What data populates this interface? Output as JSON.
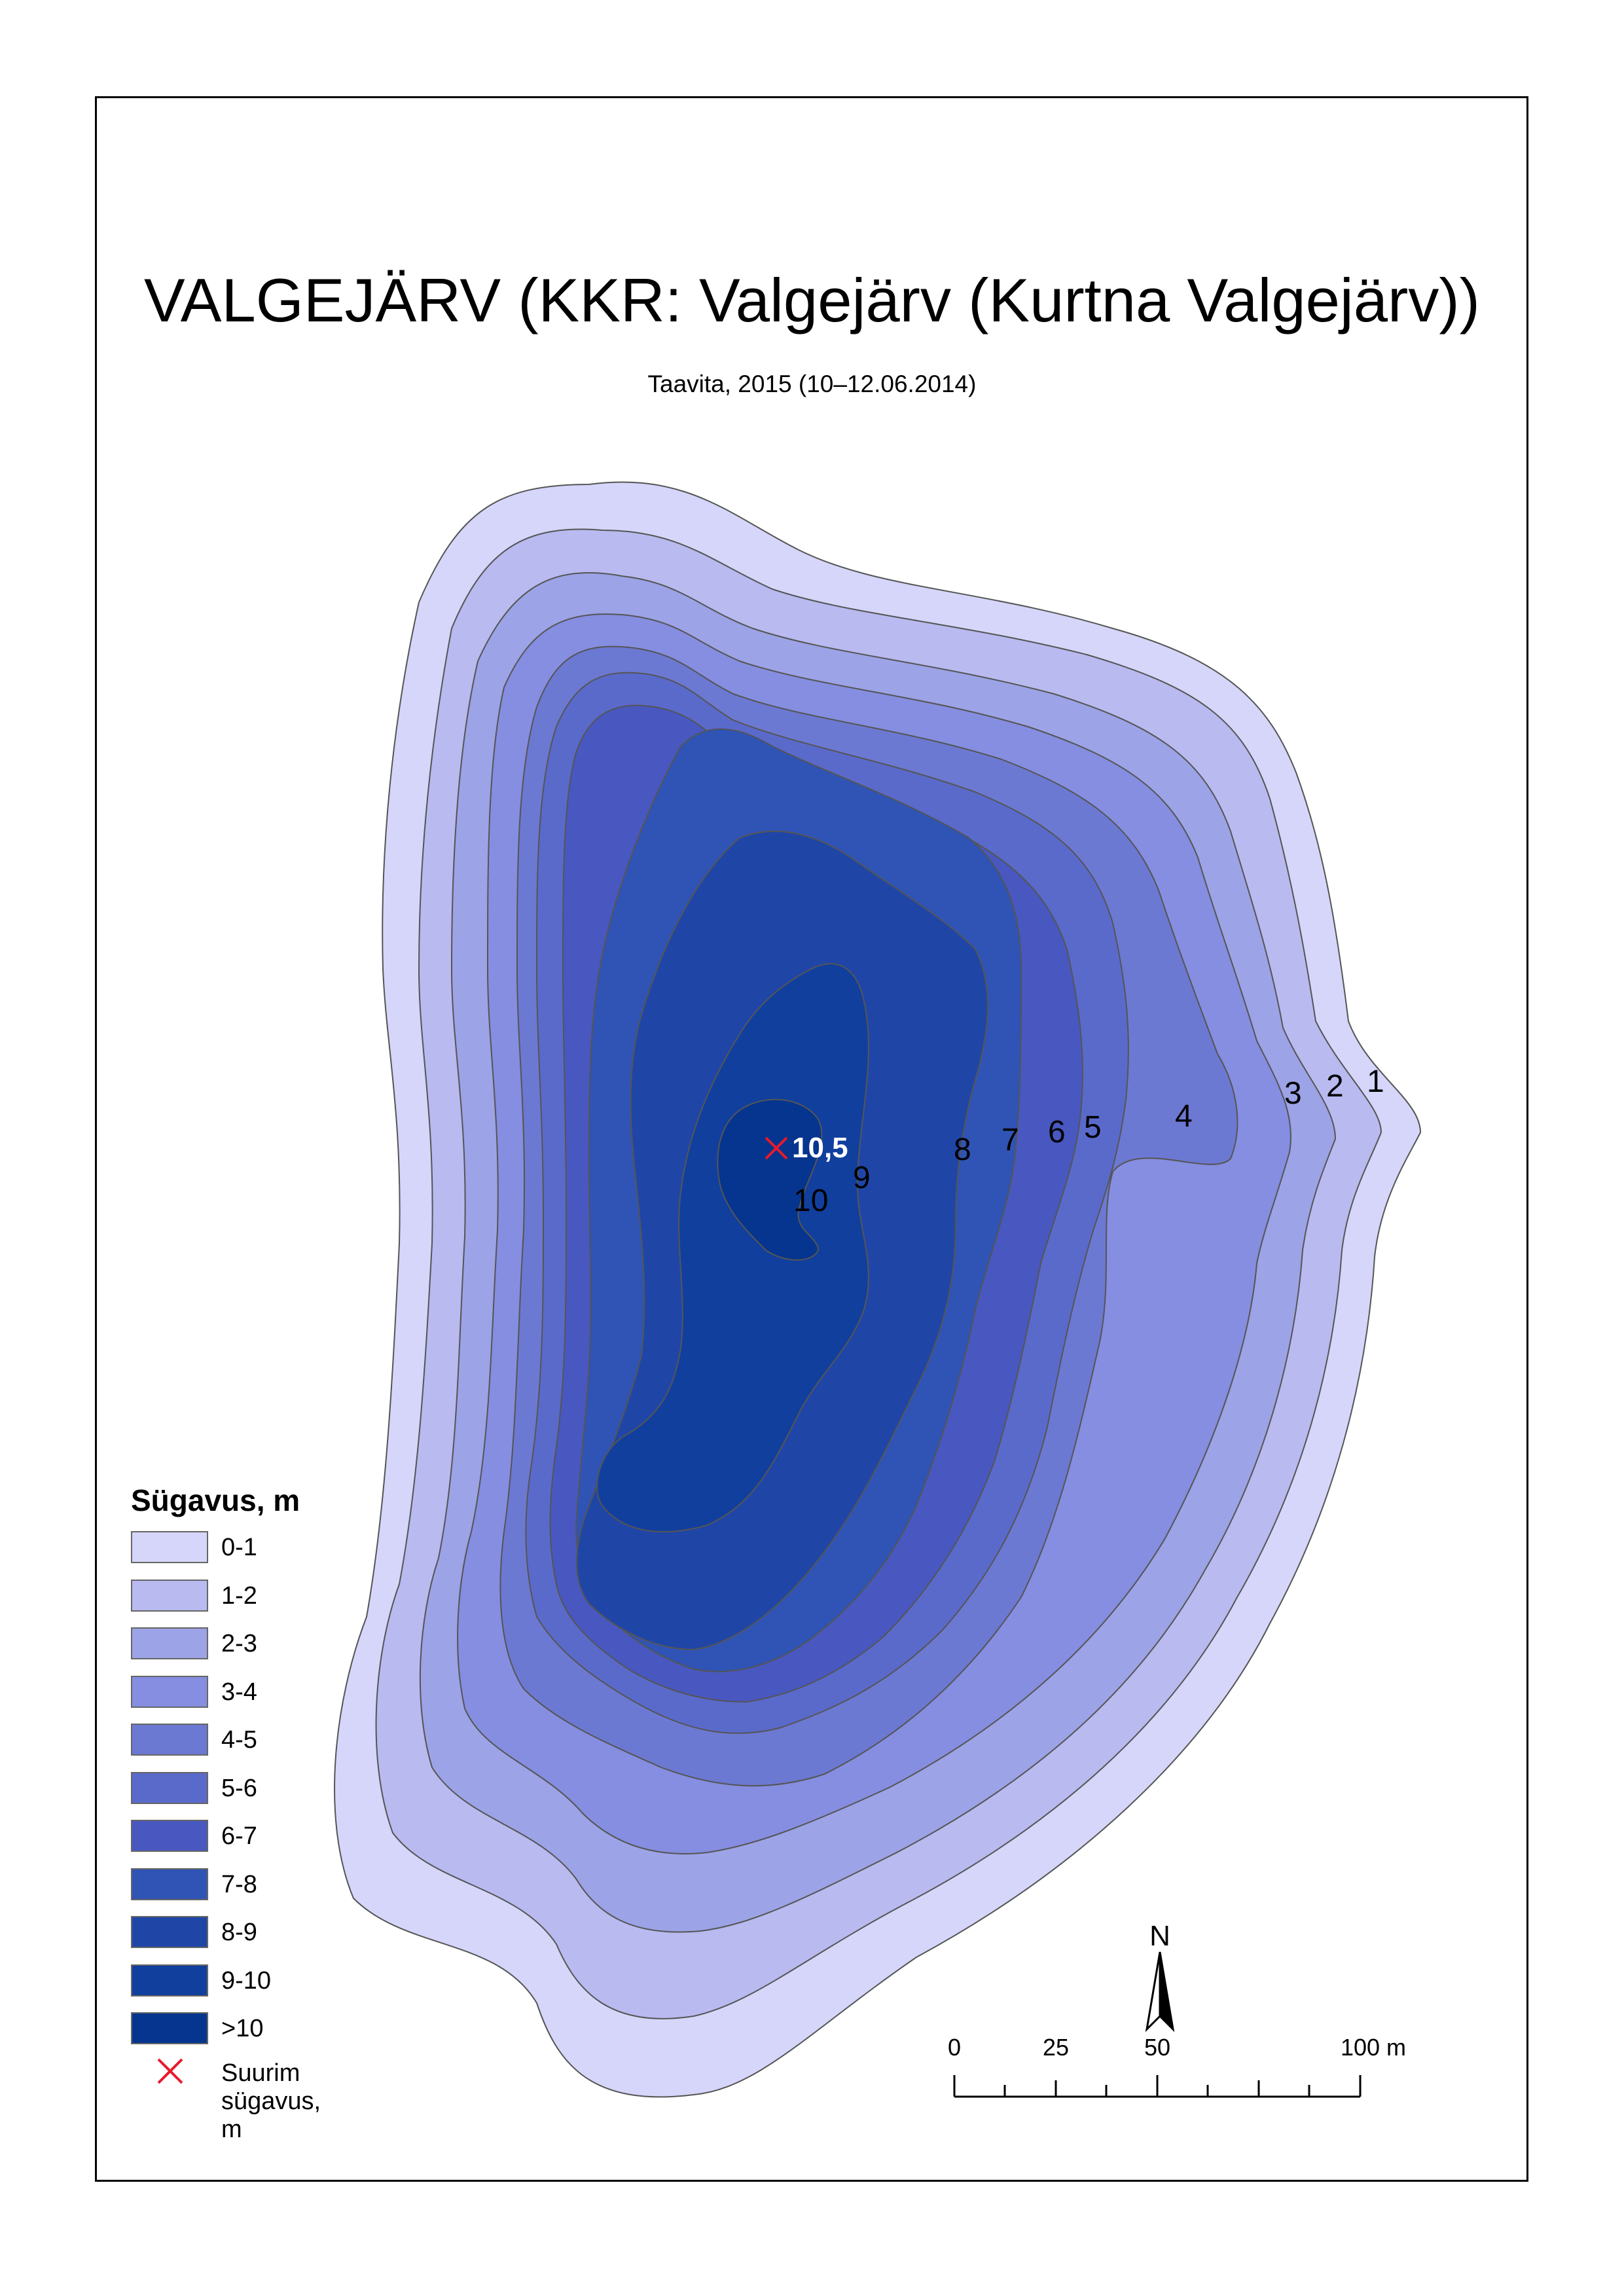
{
  "title": "VALGEJÄRV (KKR: Valgejärv (Kurtna Valgejärv))",
  "subtitle": "Taavita, 2015 (10–12.06.2014)",
  "legend": {
    "title": "Sügavus, m",
    "classes": [
      {
        "label": "0-1",
        "color": "#d5d6fa"
      },
      {
        "label": "1-2",
        "color": "#b8baf0"
      },
      {
        "label": "2-3",
        "color": "#9ca3e6"
      },
      {
        "label": "3-4",
        "color": "#858ee0"
      },
      {
        "label": "4-5",
        "color": "#6c79d2"
      },
      {
        "label": "5-6",
        "color": "#5a6acb"
      },
      {
        "label": "6-7",
        "color": "#4858c0"
      },
      {
        "label": "7-8",
        "color": "#2f54b5"
      },
      {
        "label": "8-9",
        "color": "#1f46a7"
      },
      {
        "label": "9-10",
        "color": "#113f9e"
      },
      {
        "label": ">10",
        "color": "#05358e"
      }
    ],
    "max_depth_label": "Suurim sügavus, m",
    "max_depth_marker_color": "#e8192c"
  },
  "contour_labels": [
    "1",
    "2",
    "3",
    "4",
    "5",
    "6",
    "7",
    "8",
    "9",
    "10"
  ],
  "max_depth_value": "10,5",
  "north_arrow": {
    "label": "N"
  },
  "scale_bar": {
    "ticks": [
      "0",
      "25",
      "50",
      "100 m"
    ]
  }
}
